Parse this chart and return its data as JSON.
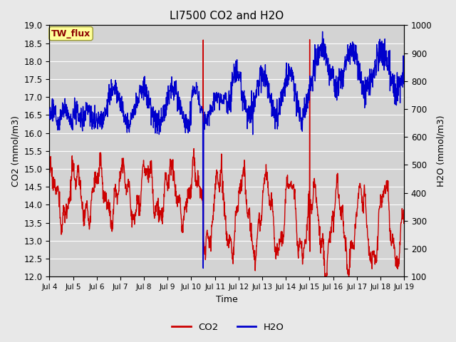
{
  "title": "LI7500 CO2 and H2O",
  "xlabel": "Time",
  "ylabel_left": "CO2 (mmol/m3)",
  "ylabel_right": "H2O (mmol/m3)",
  "ylim_left": [
    12.0,
    19.0
  ],
  "ylim_right": [
    100,
    1000
  ],
  "xtick_labels": [
    "Jul 4",
    "Jul 5",
    "Jul 6",
    "Jul 7",
    "Jul 8",
    "Jul 9",
    "Jul 10",
    "Jul 11",
    "Jul 12",
    "Jul 13",
    "Jul 14",
    "Jul 15",
    "Jul 16",
    "Jul 17",
    "Jul 18",
    "Jul 19"
  ],
  "co2_color": "#cc0000",
  "h2o_color": "#0000cc",
  "fig_bg_color": "#e8e8e8",
  "plot_bg_color": "#d3d3d3",
  "annotation_text": "TW_flux",
  "annotation_bg": "#ffff99",
  "annotation_border": "#999933",
  "legend_co2": "CO2",
  "legend_h2o": "H2O",
  "grid_color": "#ffffff",
  "linewidth": 1.0,
  "n_pts": 1440,
  "n_days": 15
}
